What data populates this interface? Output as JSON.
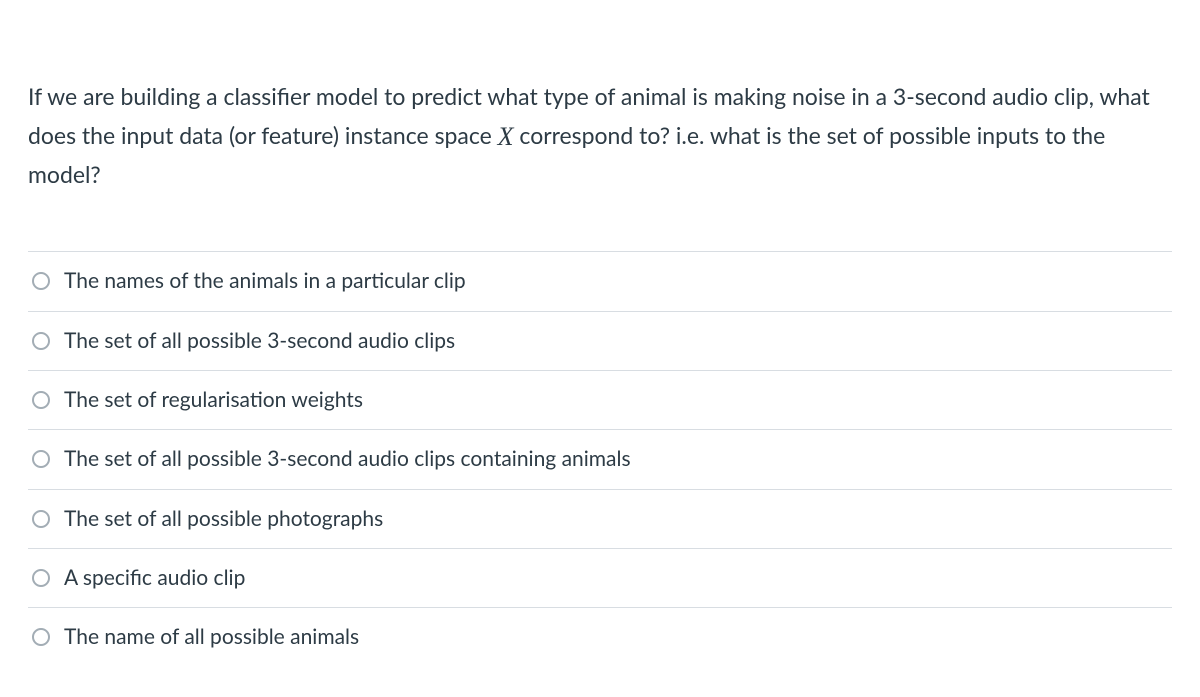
{
  "question": {
    "part1": "If we are building a classifier model to predict what type of animal is making noise in a 3-second audio clip, what does the input data (or feature) instance space ",
    "symbol": "X",
    "part2": " correspond to? i.e. what is the set of possible inputs to the model?"
  },
  "options": [
    {
      "label": "The names of the animals in a particular clip"
    },
    {
      "label": "The set of all possible 3-second audio clips"
    },
    {
      "label": "The set of regularisation weights"
    },
    {
      "label": "The set of all possible 3-second audio clips containing animals"
    },
    {
      "label": "The set of all possible photographs"
    },
    {
      "label": "A specific audio clip"
    },
    {
      "label": "The name of all possible animals"
    }
  ],
  "colors": {
    "text": "#2d3b45",
    "border": "#d8dde2",
    "radio_border": "#a3adb5",
    "background": "#ffffff"
  },
  "typography": {
    "question_fontsize": 23,
    "option_fontsize": 21
  }
}
